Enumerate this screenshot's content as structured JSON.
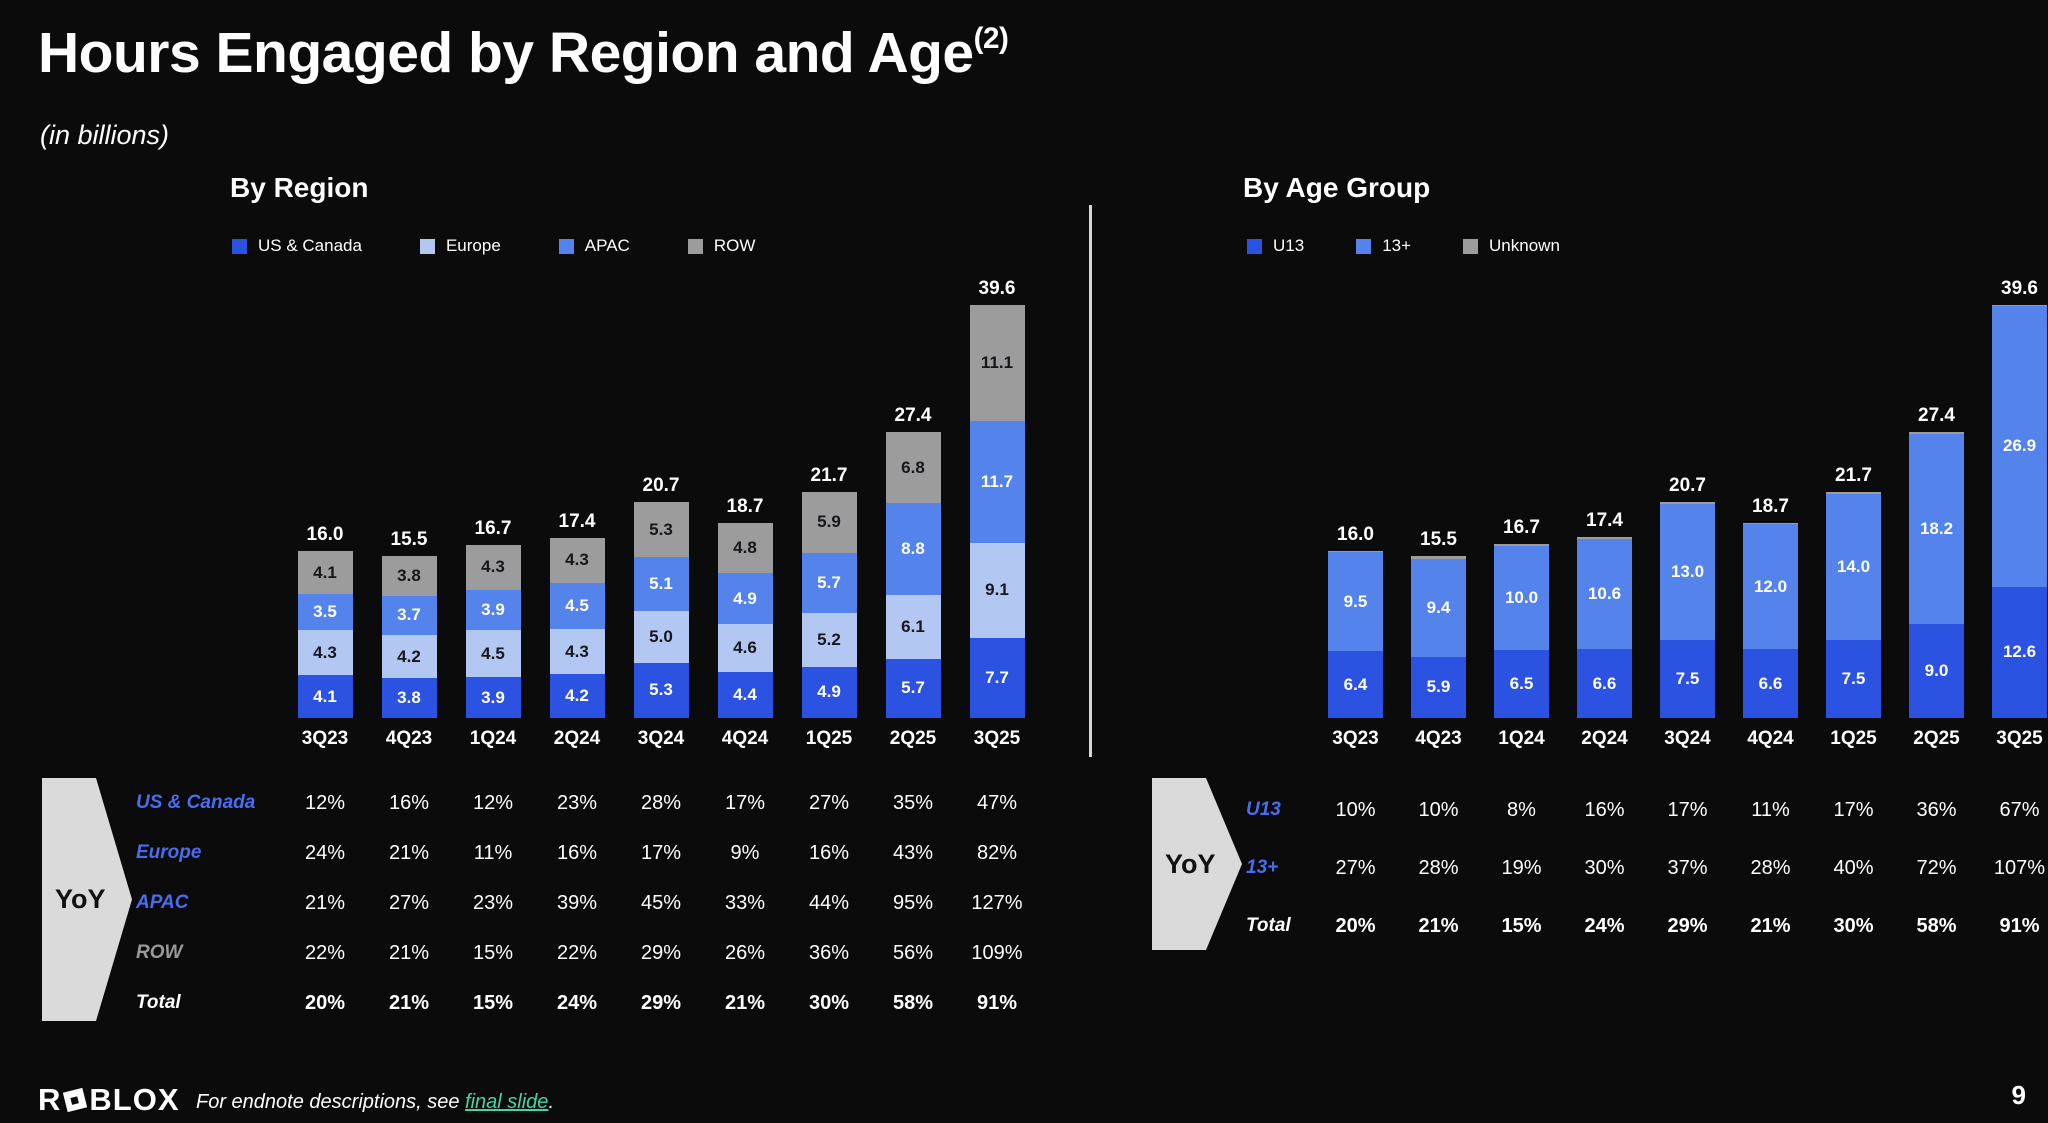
{
  "slide": {
    "title": "Hours Engaged by Region and Age",
    "title_superscript": "(2)",
    "subtitle": "(in billions)",
    "page_number": "9",
    "yoy_label": "YoY",
    "footer": {
      "logo_prefix": "R",
      "logo_suffix": "BLOX",
      "note_text": "For endnote descriptions, see ",
      "note_link": "final slide",
      "note_suffix": "."
    }
  },
  "colors": {
    "background": "#0b0b0c",
    "us_canada": "#2b52e0",
    "europe": "#b3c7f3",
    "apac": "#5583ec",
    "row": "#9c9c9c",
    "u13": "#2b52e0",
    "thirteen_plus": "#5583ec",
    "unknown": "#9c9c9c",
    "label_dark": "#15171c",
    "label_light": "#ffffff",
    "blue_label": "#4a6cf0",
    "gray_label": "#9a9a9a",
    "white_label": "#ffffff",
    "link": "#43d6a5",
    "arrow": "#dadada",
    "divider": "#d6d6d6"
  },
  "chart_data": [
    {
      "type": "bar",
      "variant": "stacked",
      "title": "By Region",
      "ylim": [
        0,
        42
      ],
      "categories": [
        "3Q23",
        "4Q23",
        "1Q24",
        "2Q24",
        "3Q24",
        "4Q24",
        "1Q25",
        "2Q25",
        "3Q25"
      ],
      "series": [
        {
          "name": "US & Canada",
          "color_key": "us_canada",
          "label": "light",
          "values": [
            4.1,
            3.8,
            3.9,
            4.2,
            5.3,
            4.4,
            4.9,
            5.7,
            7.7
          ]
        },
        {
          "name": "Europe",
          "color_key": "europe",
          "label": "dark",
          "values": [
            4.3,
            4.2,
            4.5,
            4.3,
            5.0,
            4.6,
            5.2,
            6.1,
            9.1
          ]
        },
        {
          "name": "APAC",
          "color_key": "apac",
          "label": "light",
          "values": [
            3.5,
            3.7,
            3.9,
            4.5,
            5.1,
            4.9,
            5.7,
            8.8,
            11.7
          ]
        },
        {
          "name": "ROW",
          "color_key": "row",
          "label": "dark",
          "values": [
            4.1,
            3.8,
            4.3,
            4.3,
            5.3,
            4.8,
            5.9,
            6.8,
            11.1
          ]
        }
      ],
      "totals": [
        16.0,
        15.5,
        16.7,
        17.4,
        20.7,
        18.7,
        21.7,
        27.4,
        39.6
      ]
    },
    {
      "type": "bar",
      "variant": "stacked",
      "title": "By Age Group",
      "ylim": [
        0,
        42
      ],
      "categories": [
        "3Q23",
        "4Q23",
        "1Q24",
        "2Q24",
        "3Q24",
        "4Q24",
        "1Q25",
        "2Q25",
        "3Q25"
      ],
      "series": [
        {
          "name": "U13",
          "color_key": "u13",
          "label": "light",
          "values": [
            6.4,
            5.9,
            6.5,
            6.6,
            7.5,
            6.6,
            7.5,
            9.0,
            12.6
          ]
        },
        {
          "name": "13+",
          "color_key": "thirteen_plus",
          "label": "light",
          "values": [
            9.5,
            9.4,
            10.0,
            10.6,
            13.0,
            12.0,
            14.0,
            18.2,
            26.9
          ]
        },
        {
          "name": "Unknown",
          "color_key": "unknown",
          "label": "dark",
          "hide_labels": true,
          "values": [
            0.1,
            0.2,
            0.2,
            0.2,
            0.2,
            0.1,
            0.2,
            0.2,
            0.1
          ]
        }
      ],
      "totals": [
        16.0,
        15.5,
        16.7,
        17.4,
        20.7,
        18.7,
        21.7,
        27.4,
        39.6
      ]
    }
  ],
  "yoy_tables": [
    {
      "rows": [
        {
          "label": "US & Canada",
          "label_style": "blue",
          "values": [
            "12%",
            "16%",
            "12%",
            "23%",
            "28%",
            "17%",
            "27%",
            "35%",
            "47%"
          ]
        },
        {
          "label": "Europe",
          "label_style": "blue",
          "values": [
            "24%",
            "21%",
            "11%",
            "16%",
            "17%",
            "9%",
            "16%",
            "43%",
            "82%"
          ]
        },
        {
          "label": "APAC",
          "label_style": "blue",
          "values": [
            "21%",
            "27%",
            "23%",
            "39%",
            "45%",
            "33%",
            "44%",
            "95%",
            "127%"
          ]
        },
        {
          "label": "ROW",
          "label_style": "gray",
          "values": [
            "22%",
            "21%",
            "15%",
            "22%",
            "29%",
            "26%",
            "36%",
            "56%",
            "109%"
          ]
        },
        {
          "label": "Total",
          "label_style": "white",
          "bold": true,
          "values": [
            "20%",
            "21%",
            "15%",
            "24%",
            "29%",
            "21%",
            "30%",
            "58%",
            "91%"
          ]
        }
      ]
    },
    {
      "rows": [
        {
          "label": "U13",
          "label_style": "blue",
          "values": [
            "10%",
            "10%",
            "8%",
            "16%",
            "17%",
            "11%",
            "17%",
            "36%",
            "67%"
          ]
        },
        {
          "label": "13+",
          "label_style": "blue",
          "values": [
            "27%",
            "28%",
            "19%",
            "30%",
            "37%",
            "28%",
            "40%",
            "72%",
            "107%"
          ]
        },
        {
          "label": "Total",
          "label_style": "white",
          "bold": true,
          "values": [
            "20%",
            "21%",
            "15%",
            "24%",
            "29%",
            "21%",
            "30%",
            "58%",
            "91%"
          ]
        }
      ]
    }
  ]
}
